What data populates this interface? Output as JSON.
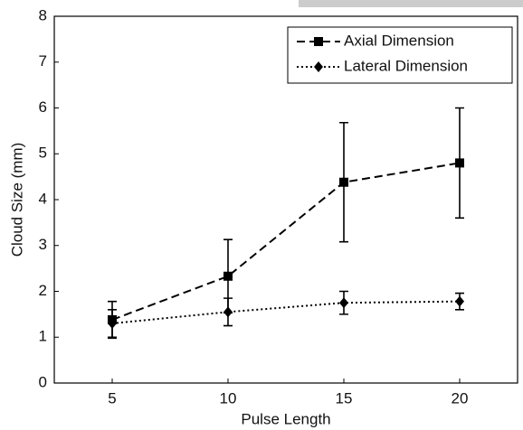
{
  "chart_data": {
    "type": "line",
    "x_label": "Pulse Length",
    "y_label": "Cloud Size (mm)",
    "x": [
      5,
      10,
      15,
      20
    ],
    "series": [
      {
        "name": "Axial Dimension",
        "color": "#000000",
        "values": [
          1.38,
          2.33,
          4.38,
          4.8
        ],
        "errors": [
          0.4,
          0.8,
          1.3,
          1.2
        ]
      },
      {
        "name": "Lateral Dimension",
        "color": "#000000",
        "values": [
          1.3,
          1.55,
          1.75,
          1.78
        ],
        "errors": [
          0.3,
          0.3,
          0.25,
          0.18
        ]
      }
    ],
    "xlim": [
      2.5,
      22.5
    ],
    "xticks": [
      5,
      10,
      15,
      20
    ],
    "ylim": [
      0,
      8
    ],
    "yticks": [
      0,
      1,
      2,
      3,
      4,
      5,
      6,
      7,
      8
    ],
    "grid": false,
    "legend": "upper right"
  }
}
